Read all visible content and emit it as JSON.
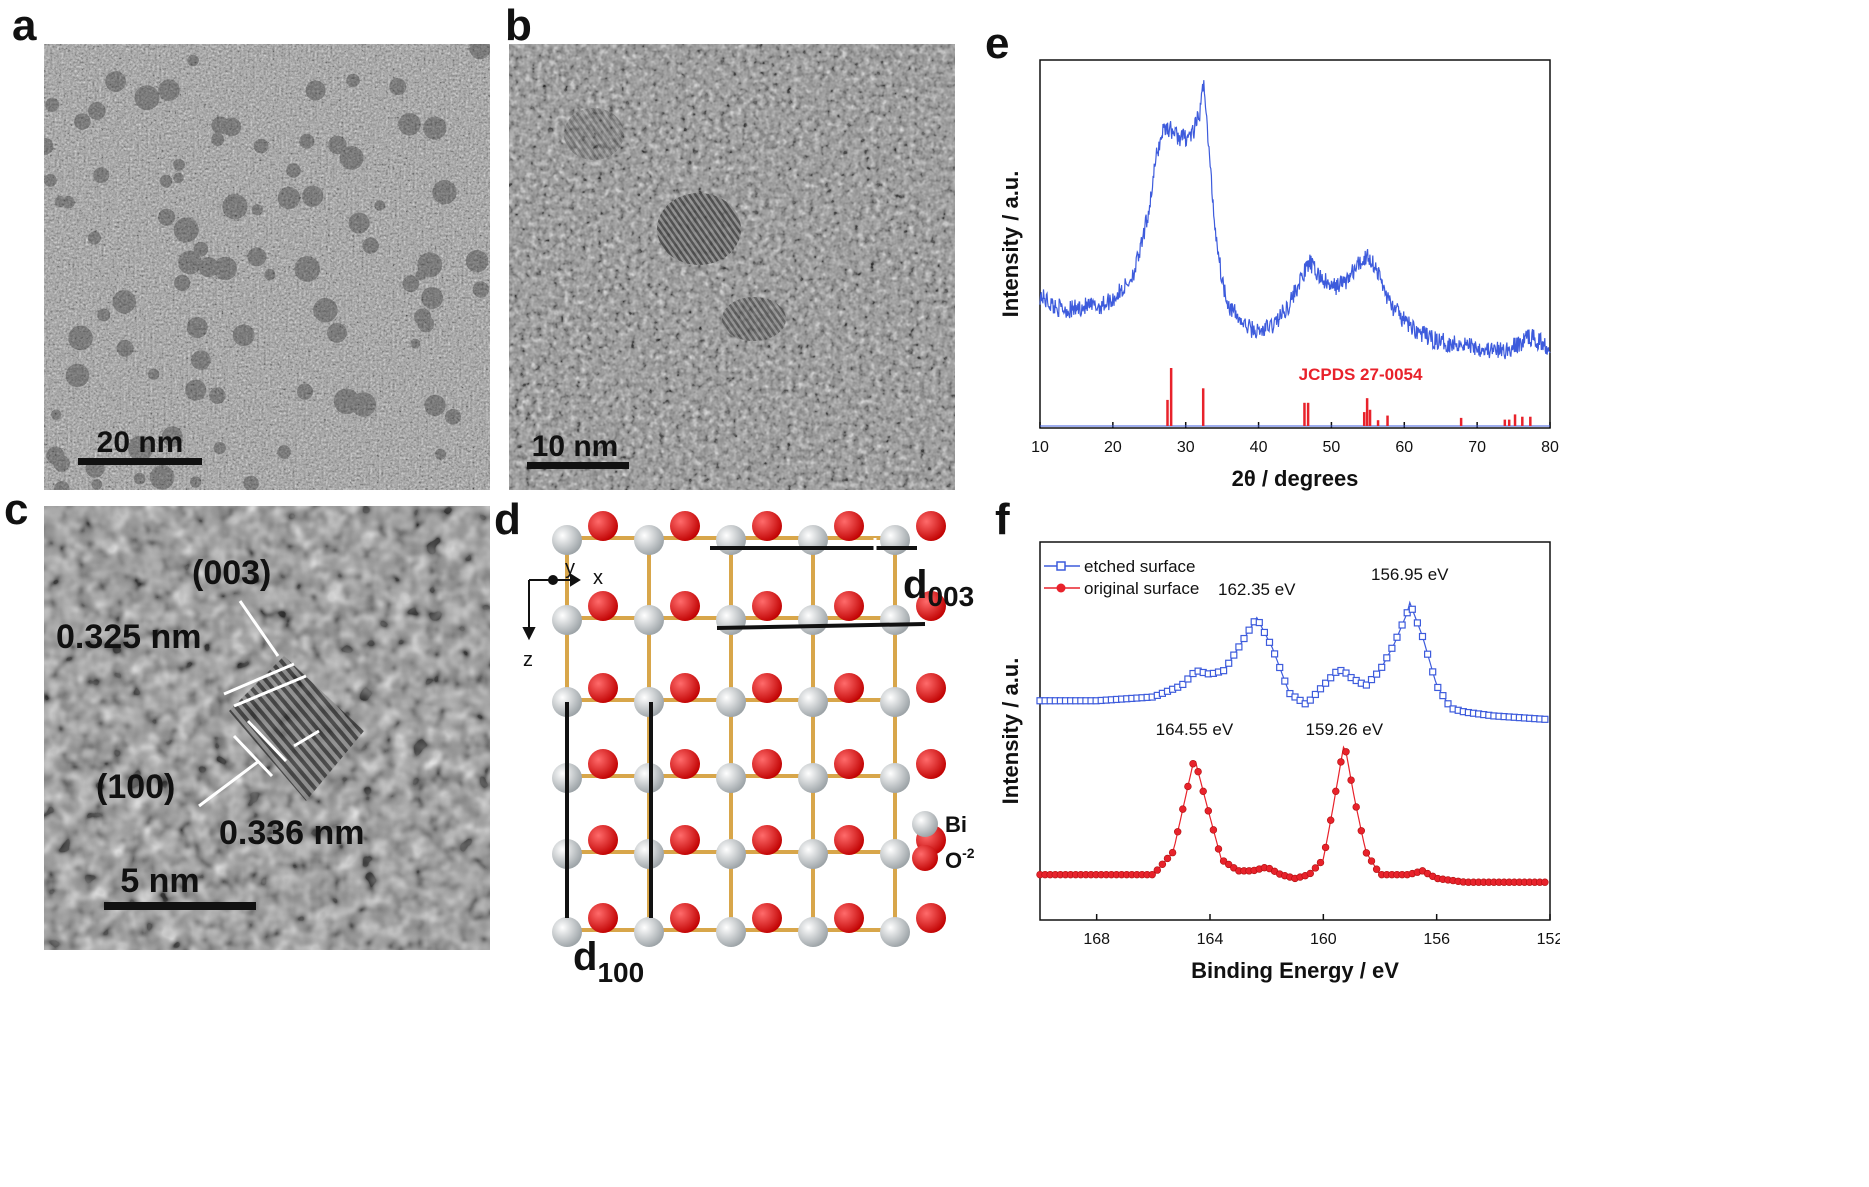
{
  "panels": {
    "a": {
      "label": "a",
      "scale_text": "20 nm"
    },
    "b": {
      "label": "b",
      "scale_text": "10 nm"
    },
    "c": {
      "label": "c",
      "scale_text": "5 nm",
      "plane_1": "(003)",
      "spacing_1": "0.325 nm",
      "plane_2": "(100)",
      "spacing_2": "0.336 nm"
    },
    "d": {
      "label": "d",
      "axis_y": "y",
      "axis_x": "x",
      "axis_z": "z",
      "d003_main": "d",
      "d003_sub": "003",
      "d100_main": "d",
      "d100_sub": "100",
      "legend_bi": "Bi",
      "legend_o_main": "O",
      "legend_o_sup": "-2"
    },
    "e": {
      "label": "e"
    },
    "f": {
      "label": "f"
    }
  },
  "colors": {
    "blue": "#3d5bdc",
    "red": "#e8222b",
    "bi_atom": "#c8cccf",
    "o_atom": "#e11d1d",
    "bond": "#d8a64a"
  },
  "chart_data": [
    {
      "panel": "e",
      "type": "line",
      "xlabel": "2θ / degrees",
      "ylabel": "Intensity / a.u.",
      "xlim": [
        10,
        80
      ],
      "xticks": [
        10,
        20,
        30,
        40,
        50,
        60,
        70,
        80
      ],
      "series": [
        {
          "color": "#3d5bdc",
          "x": [
            10,
            12,
            14,
            16,
            18,
            20,
            22,
            23,
            24,
            25,
            26,
            27,
            28,
            29,
            30,
            31,
            32,
            32.5,
            33,
            34,
            35,
            36,
            38,
            40,
            42,
            44,
            46,
            47,
            48,
            50,
            52,
            54,
            55,
            56,
            57,
            58,
            60,
            62,
            64,
            66,
            68,
            70,
            72,
            74,
            76,
            77,
            78,
            80
          ],
          "y": [
            0.36,
            0.33,
            0.32,
            0.33,
            0.33,
            0.35,
            0.39,
            0.43,
            0.5,
            0.6,
            0.74,
            0.82,
            0.81,
            0.79,
            0.79,
            0.8,
            0.86,
            0.95,
            0.8,
            0.55,
            0.4,
            0.33,
            0.28,
            0.26,
            0.28,
            0.33,
            0.41,
            0.45,
            0.42,
            0.38,
            0.4,
            0.45,
            0.47,
            0.44,
            0.39,
            0.34,
            0.29,
            0.26,
            0.24,
            0.23,
            0.23,
            0.22,
            0.21,
            0.21,
            0.23,
            0.25,
            0.24,
            0.22
          ]
        }
      ],
      "reference": {
        "label": "JCPDS 27-0054",
        "peaks": [
          {
            "x": 27.5,
            "h": 0.45
          },
          {
            "x": 28.0,
            "h": 1.0
          },
          {
            "x": 32.4,
            "h": 0.65
          },
          {
            "x": 46.3,
            "h": 0.4
          },
          {
            "x": 46.8,
            "h": 0.4
          },
          {
            "x": 54.5,
            "h": 0.24
          },
          {
            "x": 54.9,
            "h": 0.48
          },
          {
            "x": 55.3,
            "h": 0.28
          },
          {
            "x": 56.4,
            "h": 0.1
          },
          {
            "x": 57.7,
            "h": 0.18
          },
          {
            "x": 67.8,
            "h": 0.14
          },
          {
            "x": 73.8,
            "h": 0.11
          },
          {
            "x": 74.4,
            "h": 0.11
          },
          {
            "x": 75.2,
            "h": 0.2
          },
          {
            "x": 76.2,
            "h": 0.16
          },
          {
            "x": 77.3,
            "h": 0.16
          }
        ]
      }
    },
    {
      "panel": "f",
      "type": "line",
      "xlabel": "Binding Energy / eV",
      "ylabel": "Intensity / a.u.",
      "xlim": [
        170,
        152
      ],
      "xticks": [
        168,
        164,
        160,
        156,
        152
      ],
      "legend_position": "top-left",
      "series": [
        {
          "name": "etched surface",
          "color": "#3d5bdc",
          "marker": "open-square",
          "x": [
            170,
            168,
            166,
            165,
            164.5,
            164,
            163.5,
            163,
            162.35,
            161.8,
            161.2,
            160.6,
            160,
            159.5,
            159.3,
            159,
            158.5,
            158,
            157.5,
            157,
            156.95,
            156.5,
            156,
            155.5,
            155,
            154,
            152
          ],
          "y": [
            0.58,
            0.58,
            0.59,
            0.62,
            0.66,
            0.65,
            0.66,
            0.72,
            0.8,
            0.72,
            0.6,
            0.57,
            0.62,
            0.66,
            0.66,
            0.64,
            0.62,
            0.66,
            0.73,
            0.82,
            0.84,
            0.75,
            0.62,
            0.56,
            0.55,
            0.54,
            0.53
          ]
        },
        {
          "name": "original surface",
          "color": "#e8222b",
          "marker": "filled-circle",
          "x": [
            170,
            168,
            166,
            165.3,
            165,
            164.55,
            164.1,
            163.6,
            163,
            162.5,
            162,
            161.5,
            161,
            160.5,
            160,
            159.7,
            159.26,
            158.9,
            158.5,
            158,
            157.5,
            157,
            156.5,
            156,
            155,
            154,
            152
          ],
          "y": [
            0.12,
            0.12,
            0.12,
            0.18,
            0.28,
            0.43,
            0.3,
            0.16,
            0.13,
            0.13,
            0.14,
            0.12,
            0.11,
            0.12,
            0.16,
            0.28,
            0.47,
            0.32,
            0.18,
            0.12,
            0.12,
            0.12,
            0.13,
            0.11,
            0.1,
            0.1,
            0.1
          ]
        }
      ],
      "annotations": [
        {
          "text": "162.35 eV",
          "x": 162.35,
          "y": 0.86
        },
        {
          "text": "156.95 eV",
          "x": 156.95,
          "y": 0.9
        },
        {
          "text": "164.55 eV",
          "x": 164.55,
          "y": 0.49
        },
        {
          "text": "159.26 eV",
          "x": 159.26,
          "y": 0.49
        }
      ]
    }
  ]
}
